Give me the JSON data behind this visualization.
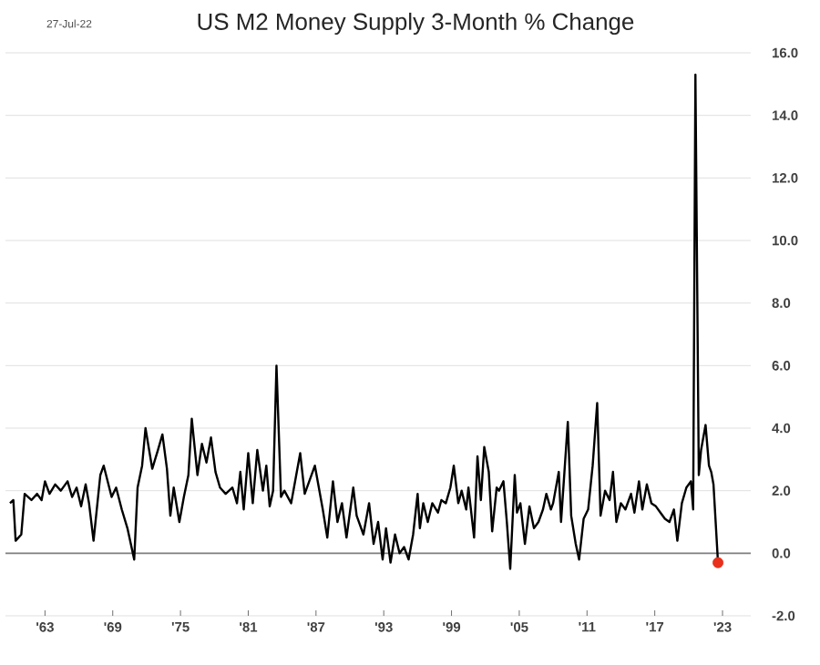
{
  "chart_data": {
    "type": "line",
    "title": "US M2 Money Supply 3-Month % Change",
    "annotations": [
      "27-Jul-22"
    ],
    "xlim": [
      1959.5,
      2025.5
    ],
    "xticks": [
      {
        "value": 1963,
        "label": "'63"
      },
      {
        "value": 1969,
        "label": "'69"
      },
      {
        "value": 1975,
        "label": "'75"
      },
      {
        "value": 1981,
        "label": "'81"
      },
      {
        "value": 1987,
        "label": "'87"
      },
      {
        "value": 1993,
        "label": "'93"
      },
      {
        "value": 1999,
        "label": "'99"
      },
      {
        "value": 2005,
        "label": "'05"
      },
      {
        "value": 2011,
        "label": "'11"
      },
      {
        "value": 2017,
        "label": "'17"
      },
      {
        "value": 2023,
        "label": "'23"
      }
    ],
    "ylim": [
      -2,
      16
    ],
    "yticks": [
      {
        "value": -2,
        "label": "-2.0"
      },
      {
        "value": 0,
        "label": "0.0"
      },
      {
        "value": 2,
        "label": "2.0"
      },
      {
        "value": 4,
        "label": "4.0"
      },
      {
        "value": 6,
        "label": "6.0"
      },
      {
        "value": 8,
        "label": "8.0"
      },
      {
        "value": 10,
        "label": "10.0"
      },
      {
        "value": 12,
        "label": "12.0"
      },
      {
        "value": 14,
        "label": "14.0"
      },
      {
        "value": 16,
        "label": "16.0"
      }
    ],
    "grid": "y",
    "ref_lines": [
      {
        "axis": "y",
        "value": 0,
        "color": "#7f7f7f"
      }
    ],
    "series": [
      {
        "color": "#000000",
        "x": [
          1959.9,
          1960.2,
          1960.4,
          1960.9,
          1961.2,
          1961.8,
          1962.3,
          1962.7,
          1963.0,
          1963.4,
          1963.9,
          1964.4,
          1965.0,
          1965.4,
          1965.8,
          1966.2,
          1966.6,
          1966.9,
          1967.3,
          1967.9,
          1968.2,
          1968.9,
          1969.3,
          1969.8,
          1970.3,
          1970.9,
          1971.2,
          1971.6,
          1971.9,
          1972.5,
          1973.0,
          1973.4,
          1973.8,
          1974.1,
          1974.4,
          1974.9,
          1975.3,
          1975.7,
          1976.0,
          1976.5,
          1976.9,
          1977.3,
          1977.7,
          1978.1,
          1978.5,
          1979.0,
          1979.6,
          1980.0,
          1980.3,
          1980.6,
          1981.0,
          1981.4,
          1981.8,
          1982.3,
          1982.6,
          1982.9,
          1983.2,
          1983.5,
          1983.9,
          1984.2,
          1984.8,
          1985.3,
          1985.6,
          1986.0,
          1986.4,
          1986.9,
          1987.2,
          1987.6,
          1988.0,
          1988.5,
          1988.9,
          1989.3,
          1989.7,
          1990.3,
          1990.6,
          1991.2,
          1991.7,
          1992.1,
          1992.5,
          1992.9,
          1993.2,
          1993.6,
          1994.0,
          1994.4,
          1994.8,
          1995.2,
          1995.6,
          1996.0,
          1996.2,
          1996.5,
          1996.9,
          1997.3,
          1997.8,
          1998.1,
          1998.5,
          1998.9,
          1999.2,
          1999.6,
          1999.9,
          2000.3,
          2000.5,
          2001.0,
          2001.3,
          2001.6,
          2001.9,
          2002.3,
          2002.6,
          2003.0,
          2003.2,
          2003.6,
          2003.9,
          2004.2,
          2004.6,
          2004.8,
          2005.1,
          2005.5,
          2005.9,
          2006.3,
          2006.7,
          2007.1,
          2007.4,
          2007.8,
          2008.0,
          2008.5,
          2008.7,
          2009.0,
          2009.3,
          2009.6,
          2010.0,
          2010.3,
          2010.7,
          2011.1,
          2011.5,
          2011.9,
          2012.2,
          2012.6,
          2013.0,
          2013.3,
          2013.6,
          2014.0,
          2014.4,
          2014.9,
          2015.2,
          2015.6,
          2015.9,
          2016.3,
          2016.7,
          2017.1,
          2017.5,
          2017.9,
          2018.3,
          2018.7,
          2019.0,
          2019.4,
          2019.8,
          2020.2,
          2020.4,
          2020.6,
          2020.9,
          2021.1,
          2021.5,
          2021.8,
          2022.0,
          2022.2,
          2022.6
        ],
        "values": [
          1.6,
          1.7,
          0.4,
          0.6,
          1.9,
          1.7,
          1.9,
          1.7,
          2.3,
          1.9,
          2.2,
          2.0,
          2.3,
          1.8,
          2.1,
          1.5,
          2.2,
          1.6,
          0.4,
          2.5,
          2.8,
          1.8,
          2.1,
          1.4,
          0.8,
          -0.2,
          2.1,
          2.8,
          4.0,
          2.7,
          3.3,
          3.8,
          2.7,
          1.2,
          2.1,
          1.0,
          1.8,
          2.5,
          4.3,
          2.5,
          3.5,
          2.9,
          3.7,
          2.6,
          2.1,
          1.9,
          2.1,
          1.6,
          2.6,
          1.4,
          3.2,
          1.6,
          3.3,
          2.0,
          2.8,
          1.5,
          2.0,
          6.0,
          1.8,
          2.0,
          1.6,
          2.6,
          3.2,
          1.9,
          2.3,
          2.8,
          2.2,
          1.4,
          0.5,
          2.3,
          1.0,
          1.6,
          0.5,
          2.1,
          1.2,
          0.6,
          1.6,
          0.3,
          1.0,
          -0.2,
          0.8,
          -0.3,
          0.6,
          0.0,
          0.2,
          -0.2,
          0.6,
          1.9,
          0.8,
          1.6,
          1.0,
          1.6,
          1.3,
          1.7,
          1.6,
          2.1,
          2.8,
          1.6,
          2.0,
          1.4,
          2.1,
          0.5,
          3.1,
          1.7,
          3.4,
          2.6,
          0.7,
          2.1,
          2.0,
          2.3,
          1.0,
          -0.5,
          2.5,
          1.3,
          1.6,
          0.3,
          1.5,
          0.8,
          1.0,
          1.4,
          1.9,
          1.4,
          1.6,
          2.6,
          1.0,
          2.6,
          4.2,
          1.2,
          0.3,
          -0.2,
          1.1,
          1.4,
          2.8,
          4.8,
          1.2,
          2.0,
          1.7,
          2.6,
          1.0,
          1.6,
          1.4,
          1.9,
          1.3,
          2.3,
          1.4,
          2.2,
          1.6,
          1.5,
          1.3,
          1.1,
          1.0,
          1.4,
          0.4,
          1.6,
          2.1,
          2.3,
          1.4,
          15.3,
          2.5,
          3.3,
          4.1,
          2.8,
          2.6,
          2.2,
          -0.3
        ]
      },
      {
        "type": "scatter",
        "color": "#e8301c",
        "x": [
          2022.6
        ],
        "values": [
          -0.3
        ]
      }
    ]
  }
}
